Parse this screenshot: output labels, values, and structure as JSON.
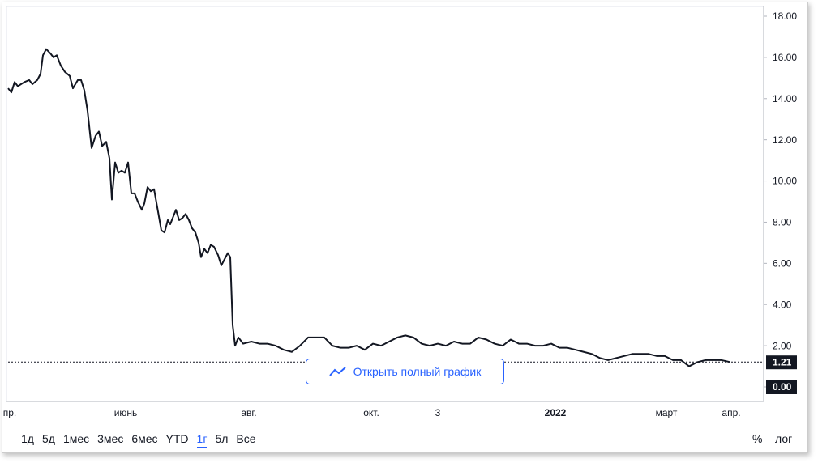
{
  "chart_data": {
    "type": "line",
    "color": "#131722",
    "grid": false,
    "x": [
      0,
      1,
      2,
      3,
      5,
      6.5,
      7.5,
      9,
      10,
      10.75,
      11.75,
      13,
      14,
      15,
      16.25,
      17.5,
      19,
      20,
      21.5,
      22.5,
      23.5,
      24.5,
      25.75,
      27,
      28,
      29,
      30.25,
      31.25,
      32,
      33,
      34,
      35,
      36,
      37,
      38,
      39,
      40,
      41.25,
      42,
      43,
      44,
      45,
      46.25,
      47.25,
      48.25,
      49.25,
      50,
      51,
      51.75,
      52.75,
      53.75,
      54.75,
      55.75,
      56.75,
      57.75,
      58.75,
      59.5,
      60.5,
      61.5,
      62.5,
      63.5,
      64.75,
      65.75,
      66.75,
      67.75,
      68.5,
      69.25,
      70,
      71,
      72.5,
      75,
      77.5,
      80,
      82.5,
      85,
      87.5,
      90,
      92.5,
      95,
      97.5,
      100,
      102.5,
      105,
      107.5,
      110,
      112.5,
      115,
      117.5,
      120,
      122.5,
      125,
      127.5,
      130,
      132.5,
      135,
      137.5,
      140,
      142.5,
      145,
      147.5,
      150,
      152.5,
      155,
      157.5,
      160,
      162.5,
      165,
      167.5,
      170,
      172.5,
      175,
      177.5,
      180,
      182.5,
      185,
      187.5,
      190,
      192.5,
      195,
      197.5,
      200,
      202.5,
      205,
      207.5,
      210,
      212.5,
      215,
      217.5,
      220,
      222.5
    ],
    "values": [
      14.5,
      14.3,
      14.8,
      14.6,
      14.8,
      14.9,
      14.7,
      14.9,
      15.2,
      16.1,
      16.4,
      16.2,
      16.0,
      16.1,
      15.6,
      15.3,
      15.1,
      14.5,
      14.9,
      14.9,
      14.4,
      13.4,
      11.6,
      12.2,
      12.4,
      11.7,
      11.9,
      11.1,
      9.1,
      10.9,
      10.4,
      10.5,
      10.4,
      10.9,
      9.4,
      9.4,
      9.0,
      8.6,
      8.9,
      9.7,
      9.5,
      9.6,
      8.5,
      7.6,
      7.5,
      8.1,
      7.9,
      8.3,
      8.6,
      8.1,
      8.2,
      8.4,
      8.1,
      7.7,
      7.5,
      7.0,
      6.3,
      6.7,
      6.5,
      6.9,
      6.8,
      6.4,
      5.9,
      6.2,
      6.5,
      6.3,
      3.0,
      2.0,
      2.4,
      2.1,
      2.2,
      2.1,
      2.1,
      2.0,
      1.8,
      1.7,
      2.0,
      2.4,
      2.4,
      2.4,
      2.0,
      1.9,
      1.9,
      2.0,
      1.8,
      2.1,
      2.0,
      2.2,
      2.4,
      2.5,
      2.4,
      2.1,
      2.0,
      2.1,
      2.0,
      2.2,
      2.1,
      2.1,
      2.4,
      2.3,
      2.1,
      2.0,
      2.3,
      2.1,
      2.1,
      2.0,
      2.0,
      2.1,
      1.9,
      1.9,
      1.8,
      1.7,
      1.6,
      1.4,
      1.3,
      1.4,
      1.5,
      1.6,
      1.6,
      1.6,
      1.5,
      1.5,
      1.3,
      1.3,
      1.0,
      1.2,
      1.3,
      1.3,
      1.3,
      1.21
    ],
    "xlim": [
      0,
      233
    ],
    "xticks": [
      {
        "value": 0.5,
        "label": "пр."
      },
      {
        "value": 36.25,
        "label": "июнь"
      },
      {
        "value": 74.25,
        "label": "авг."
      },
      {
        "value": 112,
        "label": "окт."
      },
      {
        "value": 132.5,
        "label": "3"
      },
      {
        "value": 168.75,
        "label": "2022"
      },
      {
        "value": 203,
        "label": "март"
      },
      {
        "value": 223,
        "label": "апр."
      }
    ],
    "ylim": [
      0,
      18
    ],
    "yticks": [
      {
        "value": 0,
        "label": "0.00"
      },
      {
        "value": 2,
        "label": "2.00"
      },
      {
        "value": 4,
        "label": "4.00"
      },
      {
        "value": 6,
        "label": "6.00"
      },
      {
        "value": 8,
        "label": "8.00"
      },
      {
        "value": 10,
        "label": "10.00"
      },
      {
        "value": 12,
        "label": "12.00"
      },
      {
        "value": 14,
        "label": "14.00"
      },
      {
        "value": 16,
        "label": "16.00"
      },
      {
        "value": 18,
        "label": "18.00"
      }
    ],
    "last_price": 1.21
  },
  "open_button": "Открыть полный график",
  "range_buttons": [
    "1д",
    "5д",
    "1мес",
    "3мес",
    "6мес",
    "YTD",
    "1г",
    "5л",
    "Все"
  ],
  "selected_range": 6,
  "percent_button": "%",
  "log_button": "лог"
}
